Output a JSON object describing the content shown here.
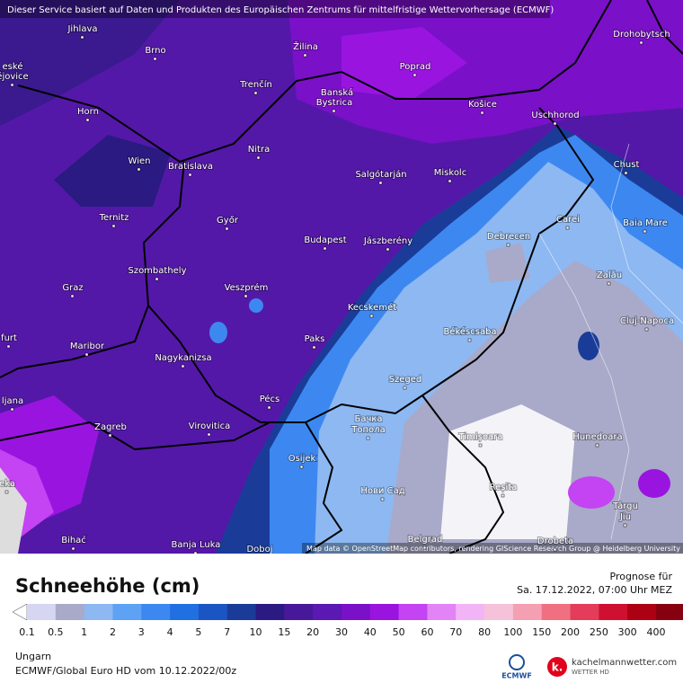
{
  "header": {
    "service": "Dieser Service basiert auf Daten und Produkten des Europäischen Zentrums für mittelfristige Wettervorhersage (ECMWF)",
    "attribution": "Map data © OpenStreetMap contributors, rendering GIScience Research Group @ Heidelberg University"
  },
  "map": {
    "places": [
      "Jihlava",
      "Brno",
      "Žilina",
      "Poprad",
      "Drohobytsch",
      "eské",
      "ějovice",
      "Trenčín",
      "Banská",
      "Bystrica",
      "Košice",
      "Uschhorod",
      "Horn",
      "Nitra",
      "Wien",
      "Bratislava",
      "Salgótarján",
      "Miskolc",
      "Chust",
      "Ternitz",
      "Győr",
      "Carei",
      "Baia Mare",
      "Budapest",
      "Jászberény",
      "Debrecen",
      "Szombathely",
      "Zalău",
      "Graz",
      "Veszprém",
      "Kecskemét",
      "Cluj-Napoca",
      "Békéscsaba",
      "furt",
      "Paks",
      "Maribor",
      "Nagykanizsa",
      "Szeged",
      "ljana",
      "Pécs",
      "Zagreb",
      "Virovitica",
      "Бачка",
      "Топола",
      "Timișoara",
      "Hunedoara",
      "Osijek",
      "eka",
      "Нови Сад",
      "Reșita",
      "Târgu",
      "Jiu",
      "Belgrad",
      "Bihać",
      "Banja Luka",
      "Doboj",
      "Drobeta"
    ]
  },
  "legend": {
    "title": "Schneehöhe (cm)",
    "levels": [
      0.1,
      0.5,
      1,
      2,
      3,
      4,
      5,
      7,
      10,
      15,
      20,
      30,
      40,
      50,
      60,
      70,
      80,
      100,
      150,
      200,
      250,
      300,
      400
    ],
    "colors": [
      "#d6d6f2",
      "#a9a9c9",
      "#8db8f2",
      "#5ea2f6",
      "#3d88f0",
      "#2170e2",
      "#1b55c4",
      "#1a3c98",
      "#2b1a82",
      "#48189a",
      "#5b18b2",
      "#7a10c8",
      "#9a14e0",
      "#c443f2",
      "#e284f6",
      "#f2b4f6",
      "#f6c2da",
      "#f5a0b2",
      "#f07082",
      "#e53c5c",
      "#cf1030",
      "#ad0012",
      "#860010"
    ]
  },
  "forecast": {
    "label": "Prognose für",
    "time": "Sa. 17.12.2022, 07:00 Uhr MEZ"
  },
  "footer": {
    "region": "Ungarn",
    "model": "ECMWF/Global Euro HD vom  10.12.2022/00z",
    "logo_left": "ECMWF",
    "logo_right": "kachelmannwetter.com",
    "logo_right_sub": "WETTER HD"
  }
}
